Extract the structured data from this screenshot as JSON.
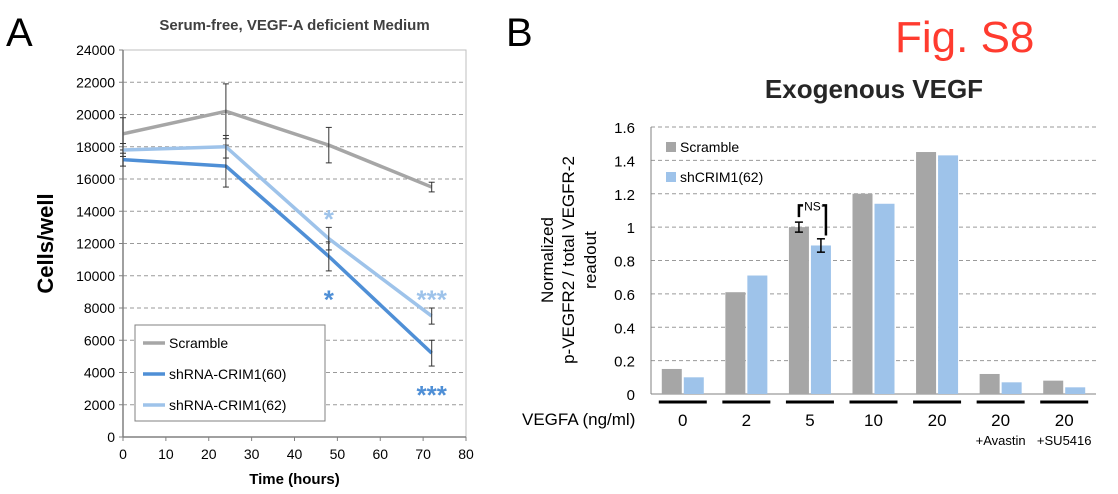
{
  "figure_label": "Fig. S8",
  "panel_labels": {
    "a": "A",
    "b": "B"
  },
  "chart_data": [
    {
      "type": "line",
      "title": "Serum-free, VEGF-A deficient Medium",
      "xlabel": "Time (hours)",
      "ylabel": "Cells/well",
      "xlim": [
        0,
        80
      ],
      "ylim": [
        0,
        24000
      ],
      "xticks": [
        "0",
        "10",
        "20",
        "30",
        "40",
        "50",
        "60",
        "70",
        "80"
      ],
      "yticks": [
        "0",
        "2000",
        "4000",
        "6000",
        "8000",
        "10000",
        "12000",
        "14000",
        "16000",
        "18000",
        "20000",
        "22000",
        "24000"
      ],
      "grid": "horizontal dashed",
      "legend_position": "bottom-left",
      "x": [
        0,
        24,
        48,
        72
      ],
      "series": [
        {
          "name": "Scramble",
          "color": "#a6a6a6",
          "values": [
            18800,
            20200,
            18100,
            15500
          ],
          "errors": [
            1000,
            1700,
            1100,
            300
          ]
        },
        {
          "name": "shRNA-CRIM1(60)",
          "color": "#4f8fd6",
          "values": [
            17200,
            16800,
            11200,
            5200
          ],
          "errors": [
            400,
            1300,
            900,
            800
          ]
        },
        {
          "name": "shRNA-CRIM1(62)",
          "color": "#9ec3ea",
          "values": [
            17800,
            18000,
            12300,
            7500
          ],
          "errors": [
            400,
            700,
            700,
            500
          ]
        }
      ],
      "annotations": [
        {
          "text": "*",
          "x": 48,
          "y": 13700,
          "color": "#9ec3ea"
        },
        {
          "text": "*",
          "x": 48,
          "y": 8700,
          "color": "#4f8fd6"
        },
        {
          "text": "***",
          "x": 72,
          "y": 8700,
          "color": "#9ec3ea"
        },
        {
          "text": "***",
          "x": 72,
          "y": 2800,
          "color": "#4f8fd6"
        }
      ]
    },
    {
      "type": "bar",
      "title": "Exogenous VEGF",
      "ylabel_lines": [
        "Normalized",
        "p-VEGFR2 / total VEGFR-2",
        "readout"
      ],
      "xlabel": "VEGFA (ng/ml)",
      "ylim": [
        0,
        1.6
      ],
      "yticks": [
        "0",
        "0.2",
        "0.4",
        "0.6",
        "0.8",
        "1",
        "1.2",
        "1.4",
        "1.6"
      ],
      "grid": "horizontal dashed",
      "legend_position": "top-left",
      "categories": [
        "0",
        "2",
        "5",
        "10",
        "20",
        "20",
        "20"
      ],
      "category_sublabels": [
        "",
        "",
        "",
        "",
        "",
        "+Avastin",
        "+SU5416"
      ],
      "series": [
        {
          "name": "Scramble",
          "color": "#a6a6a6",
          "values": [
            0.15,
            0.61,
            1.0,
            1.2,
            1.45,
            0.12,
            0.08
          ]
        },
        {
          "name": "shCRIM1(62)",
          "color": "#9ec3ea",
          "values": [
            0.1,
            0.71,
            0.89,
            1.14,
            1.43,
            0.07,
            0.04
          ]
        }
      ],
      "error_bars": [
        {
          "category": 2,
          "series": 0,
          "value": 1.0,
          "error": 0.03
        },
        {
          "category": 2,
          "series": 1,
          "value": 0.89,
          "error": 0.04
        }
      ],
      "annotation": {
        "text": "NS",
        "category": 2
      }
    }
  ]
}
